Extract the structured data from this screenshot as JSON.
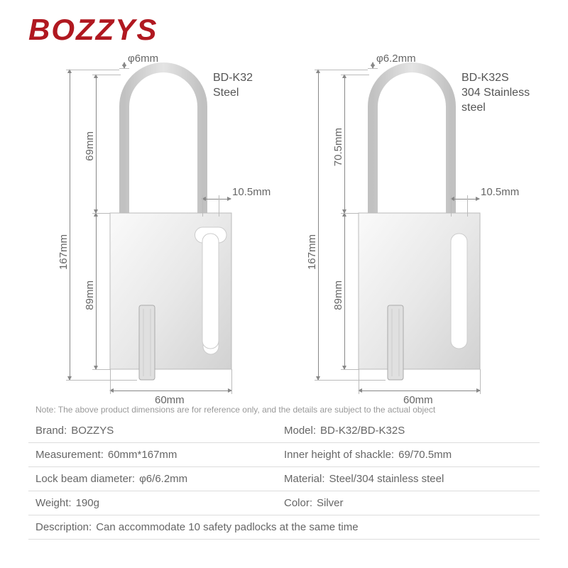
{
  "brand": {
    "name": "BOZZYS",
    "color": "#b01820"
  },
  "note": "Note: The above product dimensions are for reference only, and the details are subject to the actual object",
  "products": [
    {
      "model": "BD-K32",
      "material": "Steel",
      "shackle_dia": "φ6mm",
      "shackle_inner_h": "69mm",
      "total_h": "167mm",
      "body_h": "89mm",
      "body_w": "60mm",
      "slot_w": "10.5mm"
    },
    {
      "model": "BD-K32S",
      "material": "304 Stainless steel",
      "shackle_dia": "φ6.2mm",
      "shackle_inner_h": "70.5mm",
      "total_h": "167mm",
      "body_h": "89mm",
      "body_w": "60mm",
      "slot_w": "10.5mm"
    }
  ],
  "specs": [
    [
      {
        "k": "Brand:",
        "v": "BOZZYS"
      },
      {
        "k": "Model:",
        "v": "BD-K32/BD-K32S"
      }
    ],
    [
      {
        "k": "Measurement:",
        "v": "60mm*167mm"
      },
      {
        "k": "Inner height of shackle:",
        "v": "69/70.5mm"
      }
    ],
    [
      {
        "k": "Lock beam diameter:",
        "v": "φ6/6.2mm"
      },
      {
        "k": "Material:",
        "v": "Steel/304 stainless steel"
      }
    ],
    [
      {
        "k": "Weight:",
        "v": "190g"
      },
      {
        "k": "Color:",
        "v": "Silver"
      }
    ],
    [
      {
        "k": "Description:",
        "v": "Can accommodate 10 safety padlocks at the same time",
        "full": true
      }
    ]
  ],
  "style": {
    "diagram": {
      "shackle_stroke": "#999",
      "body_fill_top": "#f4f4f4",
      "body_fill_bot": "#d8d8d8",
      "body_stroke": "#bbb",
      "dim_color": "#666"
    }
  }
}
